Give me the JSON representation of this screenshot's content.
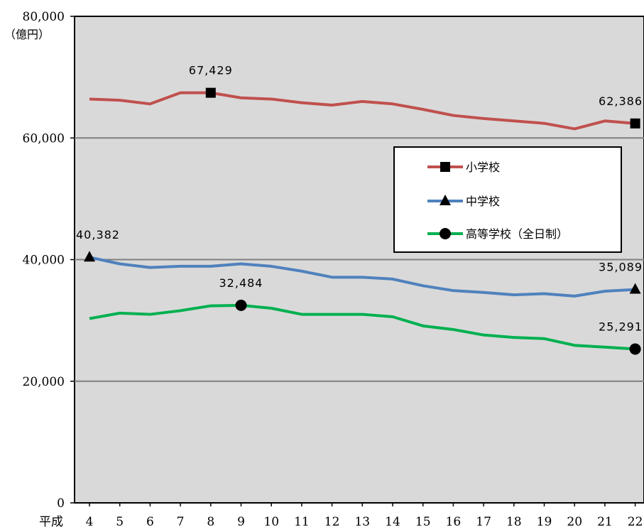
{
  "chart_data": {
    "type": "line",
    "title": "",
    "y_unit_label": "（億円）",
    "x_prefix_label": "平成",
    "ylim": [
      0,
      80000
    ],
    "y_ticks": [
      0,
      20000,
      40000,
      60000,
      80000
    ],
    "y_tick_labels": [
      "0",
      "20,000",
      "40,000",
      "60,000",
      "80,000"
    ],
    "grid": "horizontal",
    "legend_position": "right-middle",
    "categories": [
      "4",
      "5",
      "6",
      "7",
      "8",
      "9",
      "10",
      "11",
      "12",
      "13",
      "14",
      "15",
      "16",
      "17",
      "18",
      "19",
      "20",
      "21",
      "22"
    ],
    "series": [
      {
        "name": "小学校",
        "color": "#c0504d",
        "marker": "square",
        "values": [
          66400,
          66200,
          65600,
          67429,
          67429,
          66600,
          66400,
          65800,
          65400,
          66000,
          65600,
          64700,
          63700,
          63200,
          62800,
          62400,
          61500,
          62800,
          62386
        ],
        "labeled_points": [
          {
            "index": 4,
            "label": "67,429"
          },
          {
            "index": 18,
            "label": "62,386"
          }
        ]
      },
      {
        "name": "中学校",
        "color": "#4f81bd",
        "marker": "triangle",
        "values": [
          40382,
          39300,
          38700,
          38900,
          38900,
          39300,
          38900,
          38100,
          37100,
          37100,
          36800,
          35700,
          34900,
          34600,
          34200,
          34400,
          34000,
          34800,
          35089
        ],
        "labeled_points": [
          {
            "index": 0,
            "label": "40,382"
          },
          {
            "index": 18,
            "label": "35,089"
          }
        ]
      },
      {
        "name": "高等学校（全日制）",
        "color": "#00b050",
        "marker": "circle",
        "values": [
          30300,
          31200,
          31000,
          31600,
          32400,
          32484,
          32000,
          31000,
          31000,
          31000,
          30600,
          29100,
          28500,
          27600,
          27200,
          27000,
          25900,
          25600,
          25291
        ],
        "labeled_points": [
          {
            "index": 5,
            "label": "32,484"
          },
          {
            "index": 18,
            "label": "25,291"
          }
        ]
      }
    ]
  }
}
